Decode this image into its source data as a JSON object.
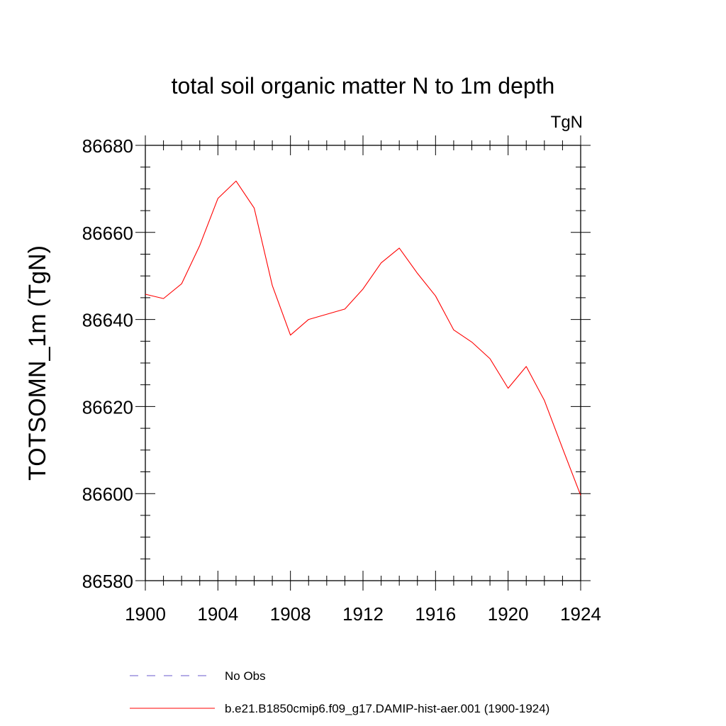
{
  "chart_data": {
    "type": "line",
    "title": "total soil organic matter N to 1m depth",
    "units_label": "TgN",
    "ylabel": "TOTSOMN_1m  (TgN)",
    "xlabel": "",
    "xlim": [
      1900,
      1924
    ],
    "ylim": [
      86580,
      86680
    ],
    "x_ticks": [
      1900,
      1904,
      1908,
      1912,
      1916,
      1920,
      1924
    ],
    "y_ticks": [
      86580,
      86600,
      86620,
      86640,
      86660,
      86680
    ],
    "grid": false,
    "legend_position": "bottom",
    "series": [
      {
        "name": "b.e21.B1850cmip6.f09_g17.DAMIP-hist-aer.001 (1900-1924)",
        "color": "#ff0000",
        "style": "solid",
        "x": [
          1900,
          1901,
          1902,
          1903,
          1904,
          1905,
          1906,
          1907,
          1908,
          1909,
          1910,
          1911,
          1912,
          1913,
          1914,
          1915,
          1916,
          1917,
          1918,
          1919,
          1920,
          1921,
          1922,
          1923,
          1924
        ],
        "values": [
          86645.8,
          86644.8,
          86648.2,
          86657.0,
          86667.8,
          86671.8,
          86665.6,
          86647.8,
          86636.4,
          86640.0,
          86641.2,
          86642.4,
          86647.0,
          86653.0,
          86656.4,
          86650.6,
          86645.4,
          86637.6,
          86634.8,
          86631.0,
          86624.2,
          86629.2,
          86621.4,
          86610.4,
          86599.6
        ]
      },
      {
        "name": "No Obs",
        "color": "#6a5acd",
        "style": "dashed",
        "x": [],
        "values": []
      }
    ]
  }
}
